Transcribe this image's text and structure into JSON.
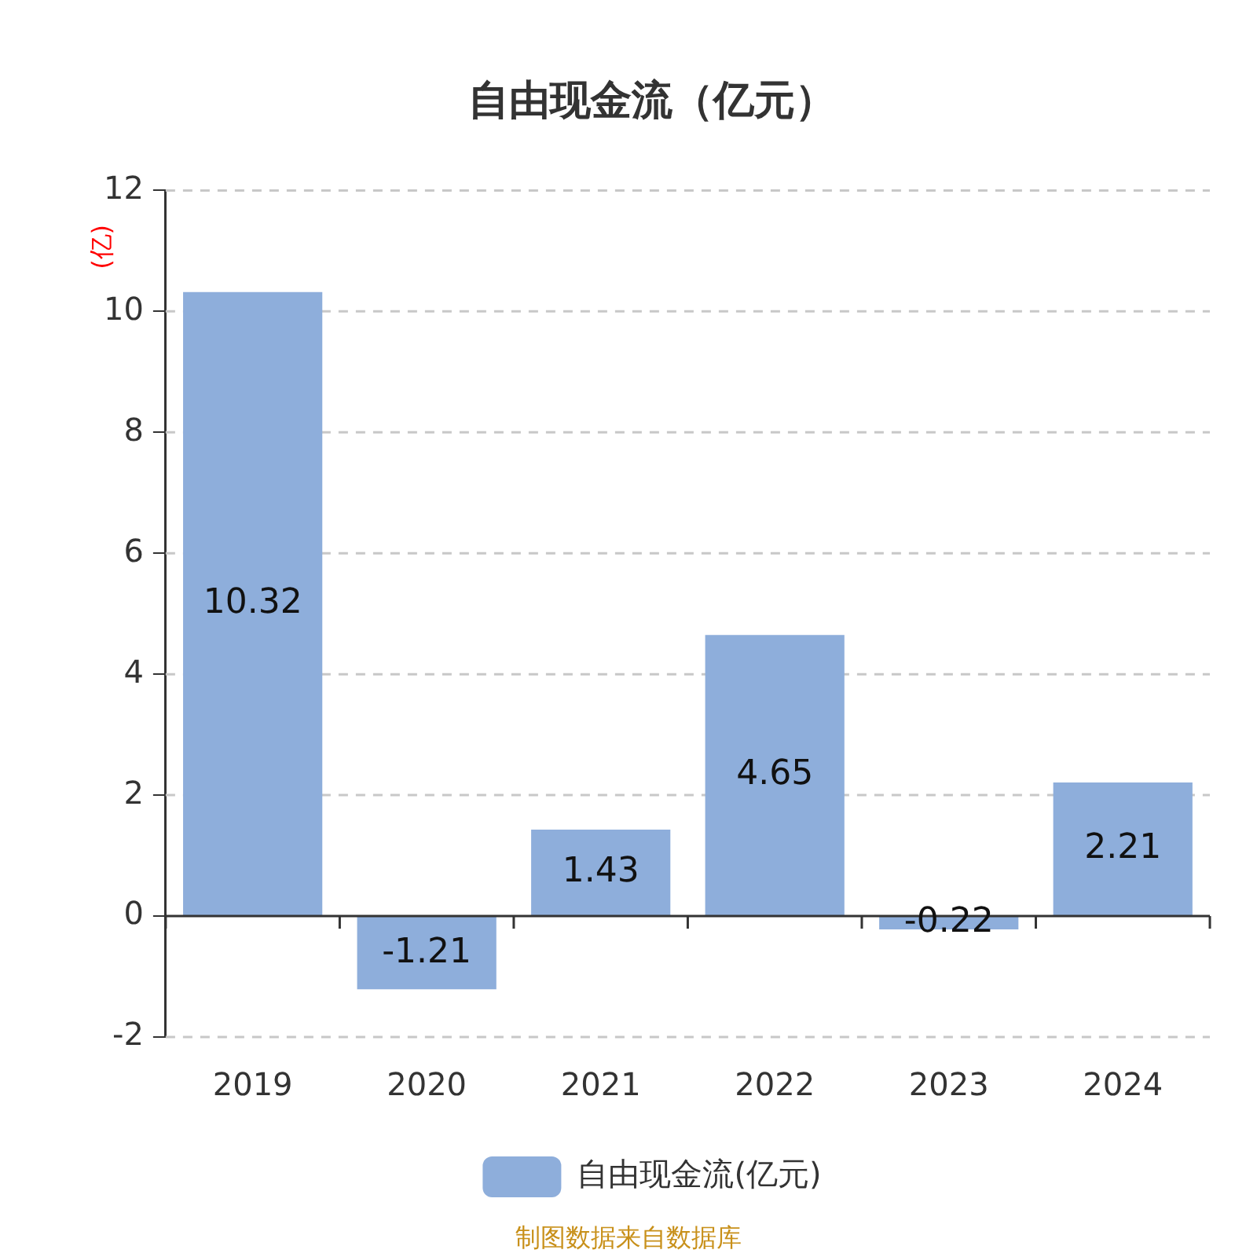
{
  "chart_data": {
    "type": "bar",
    "title": "自由现金流（亿元）",
    "ylabel": "(亿)",
    "categories": [
      "2019",
      "2020",
      "2021",
      "2022",
      "2023",
      "2024"
    ],
    "series": [
      {
        "name": "自由现金流(亿元)",
        "color": "#8eaedb",
        "values": [
          10.32,
          -1.21,
          1.43,
          4.65,
          -0.22,
          2.21
        ]
      }
    ],
    "ylim": [
      -2,
      12
    ],
    "yticks": [
      -2,
      0,
      2,
      4,
      6,
      8,
      10,
      12
    ],
    "grid": "y",
    "legend": "bottom",
    "data_labels": true,
    "annotations": [
      "制图数据来自数据库"
    ]
  }
}
